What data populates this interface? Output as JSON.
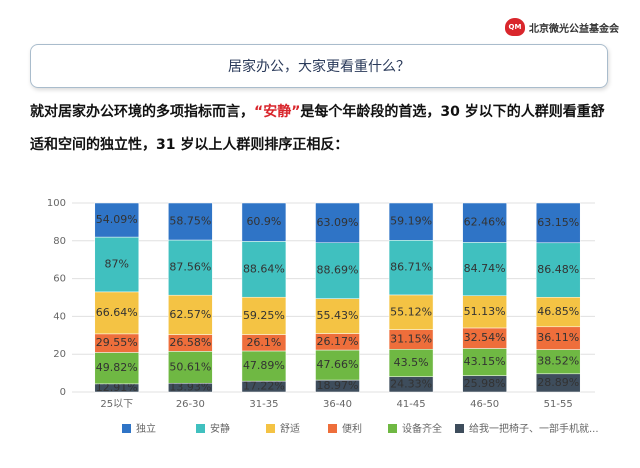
{
  "header": {
    "logo": "QM",
    "org": "北京微光公益基金会"
  },
  "heading": "居家办公，大家更看重什么？",
  "intro": {
    "before": "就对居家办公环境的多项指标而言，",
    "highlight": "“安静”",
    "after": "是每个年龄段的首选，30 岁以下的人群则看重舒适和空间的独立性，31 岁以上人群则排序正相反："
  },
  "chart_data": {
    "type": "bar",
    "stacking": "percent",
    "categories": [
      "25以下",
      "26-30",
      "31-35",
      "36-40",
      "41-45",
      "46-50",
      "51-55"
    ],
    "series": [
      {
        "name": "独立",
        "color": "#2f74c6",
        "values": [
          54.09,
          58.75,
          60.9,
          63.09,
          59.19,
          62.46,
          63.15
        ],
        "value_labels": [
          "54.09%",
          "58.75%",
          "60.9%",
          "63.09%",
          "59.19%",
          "62.46%",
          "63.15%"
        ]
      },
      {
        "name": "安静",
        "color": "#40c0bf",
        "values": [
          87,
          87.56,
          88.64,
          88.69,
          86.71,
          84.74,
          86.48
        ],
        "value_labels": [
          "87%",
          "87.56%",
          "88.64%",
          "88.69%",
          "86.71%",
          "84.74%",
          "86.48%"
        ]
      },
      {
        "name": "舒适",
        "color": "#f4c344",
        "values": [
          66.64,
          62.57,
          59.25,
          55.43,
          55.12,
          51.13,
          46.85
        ],
        "value_labels": [
          "66.64%",
          "62.57%",
          "59.25%",
          "55.43%",
          "55.12%",
          "51.13%",
          "46.85%"
        ]
      },
      {
        "name": "便利",
        "color": "#ee6e3b",
        "values": [
          29.55,
          26.58,
          26.1,
          26.17,
          31.15,
          32.54,
          36.11
        ],
        "value_labels": [
          "29.55%",
          "26.58%",
          "26.1%",
          "26.17%",
          "31.15%",
          "32.54%",
          "36.11%"
        ]
      },
      {
        "name": "设备齐全",
        "color": "#6fb843",
        "values": [
          49.82,
          50.61,
          47.89,
          47.66,
          43.5,
          43.15,
          38.52
        ],
        "value_labels": [
          "49.82%",
          "50.61%",
          "47.89%",
          "47.66%",
          "43.5%",
          "43.15%",
          "38.52%"
        ]
      },
      {
        "name": "给我一把椅子、一部手机就...",
        "color": "#3e4d5c",
        "values": [
          12.91,
          13.93,
          17.22,
          18.97,
          24.33,
          25.98,
          28.89
        ],
        "value_labels": [
          "12.91%",
          "13.93%",
          "17.22%",
          "18.97%",
          "24.33%",
          "25.98%",
          "28.89%"
        ]
      }
    ],
    "ylim": [
      0,
      100
    ],
    "yticks": [
      0,
      20,
      40,
      60,
      80,
      100
    ],
    "grid": true,
    "legend": "bottom"
  }
}
